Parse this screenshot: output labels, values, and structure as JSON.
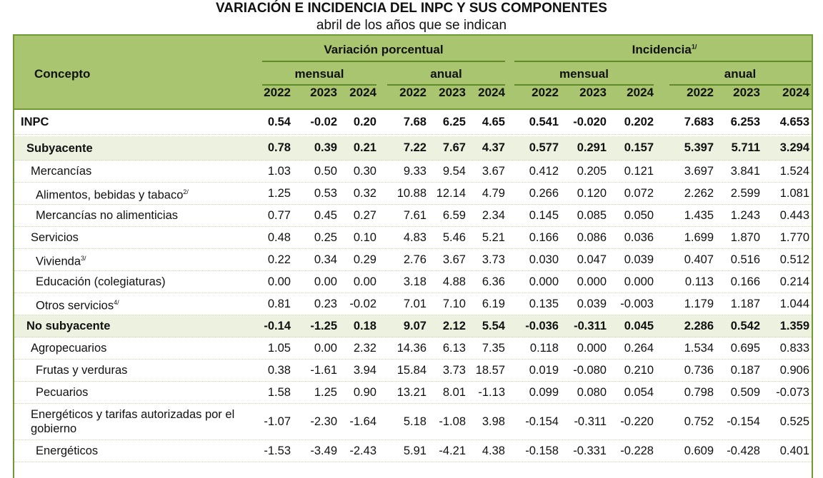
{
  "title": "VARIACIÓN E INCIDENCIA DEL INPC Y SUS COMPONENTES",
  "subtitle": "abril de los años que se indican",
  "header": {
    "concepto": "Concepto",
    "variacion": "Variación porcentual",
    "incidencia": "Incidencia",
    "incidencia_note": "1/",
    "mensual": "mensual",
    "anual": "anual",
    "years": [
      "2022",
      "2023",
      "2024",
      "2022",
      "2023",
      "2024",
      "2022",
      "2023",
      "2024",
      "2022",
      "2023",
      "2024"
    ]
  },
  "colors": {
    "header_bg": "#a9c56f",
    "border": "#6f9a34",
    "highlight_row": "#edf2e0"
  },
  "rows": [
    {
      "label": "INPC",
      "note": "",
      "level": 0,
      "bold": true,
      "highlight": false,
      "values": [
        "0.54",
        "-0.02",
        "0.20",
        "7.68",
        "6.25",
        "4.65",
        "0.541",
        "-0.020",
        "0.202",
        "7.683",
        "6.253",
        "4.653"
      ]
    },
    {
      "label": "Subyacente",
      "note": "",
      "level": 1,
      "bold": true,
      "highlight": true,
      "values": [
        "0.78",
        "0.39",
        "0.21",
        "7.22",
        "7.67",
        "4.37",
        "0.577",
        "0.291",
        "0.157",
        "5.397",
        "5.711",
        "3.294"
      ]
    },
    {
      "label": "Mercancías",
      "note": "",
      "level": 2,
      "bold": false,
      "highlight": false,
      "values": [
        "1.03",
        "0.50",
        "0.30",
        "9.33",
        "9.54",
        "3.67",
        "0.412",
        "0.205",
        "0.121",
        "3.697",
        "3.841",
        "1.524"
      ]
    },
    {
      "label": "Alimentos, bebidas y tabaco",
      "note": "2/",
      "level": 3,
      "bold": false,
      "highlight": false,
      "values": [
        "1.25",
        "0.53",
        "0.32",
        "10.88",
        "12.14",
        "4.79",
        "0.266",
        "0.120",
        "0.072",
        "2.262",
        "2.599",
        "1.081"
      ]
    },
    {
      "label": "Mercancías no alimenticias",
      "note": "",
      "level": 3,
      "bold": false,
      "highlight": false,
      "values": [
        "0.77",
        "0.45",
        "0.27",
        "7.61",
        "6.59",
        "2.34",
        "0.145",
        "0.085",
        "0.050",
        "1.435",
        "1.243",
        "0.443"
      ]
    },
    {
      "label": "Servicios",
      "note": "",
      "level": 2,
      "bold": false,
      "highlight": false,
      "values": [
        "0.48",
        "0.25",
        "0.10",
        "4.83",
        "5.46",
        "5.21",
        "0.166",
        "0.086",
        "0.036",
        "1.699",
        "1.870",
        "1.770"
      ]
    },
    {
      "label": "Vivienda",
      "note": "3/",
      "level": 3,
      "bold": false,
      "highlight": false,
      "values": [
        "0.22",
        "0.34",
        "0.29",
        "2.76",
        "3.67",
        "3.73",
        "0.030",
        "0.047",
        "0.039",
        "0.407",
        "0.516",
        "0.512"
      ]
    },
    {
      "label": "Educación (colegiaturas)",
      "note": "",
      "level": 3,
      "bold": false,
      "highlight": false,
      "values": [
        "0.00",
        "0.00",
        "0.00",
        "3.18",
        "4.88",
        "6.36",
        "0.000",
        "0.000",
        "0.000",
        "0.113",
        "0.166",
        "0.214"
      ]
    },
    {
      "label": "Otros servicios",
      "note": "4/",
      "level": 3,
      "bold": false,
      "highlight": false,
      "values": [
        "0.81",
        "0.23",
        "-0.02",
        "7.01",
        "7.10",
        "6.19",
        "0.135",
        "0.039",
        "-0.003",
        "1.179",
        "1.187",
        "1.044"
      ]
    },
    {
      "label": "No subyacente",
      "note": "",
      "level": 1,
      "bold": true,
      "highlight": true,
      "values": [
        "-0.14",
        "-1.25",
        "0.18",
        "9.07",
        "2.12",
        "5.54",
        "-0.036",
        "-0.311",
        "0.045",
        "2.286",
        "0.542",
        "1.359"
      ]
    },
    {
      "label": "Agropecuarios",
      "note": "",
      "level": 2,
      "bold": false,
      "highlight": false,
      "values": [
        "1.05",
        "0.00",
        "2.32",
        "14.36",
        "6.13",
        "7.35",
        "0.118",
        "0.000",
        "0.264",
        "1.534",
        "0.695",
        "0.833"
      ]
    },
    {
      "label": "Frutas y verduras",
      "note": "",
      "level": 3,
      "bold": false,
      "highlight": false,
      "values": [
        "0.38",
        "-1.61",
        "3.94",
        "15.84",
        "3.73",
        "18.57",
        "0.019",
        "-0.080",
        "0.210",
        "0.736",
        "0.187",
        "0.906"
      ]
    },
    {
      "label": "Pecuarios",
      "note": "",
      "level": 3,
      "bold": false,
      "highlight": false,
      "values": [
        "1.58",
        "1.25",
        "0.90",
        "13.21",
        "8.01",
        "-1.13",
        "0.099",
        "0.080",
        "0.054",
        "0.798",
        "0.509",
        "-0.073"
      ]
    },
    {
      "label": "Energéticos y tarifas autorizadas por el gobierno",
      "note": "",
      "level": 2,
      "bold": false,
      "highlight": false,
      "values": [
        "-1.07",
        "-2.30",
        "-1.64",
        "5.18",
        "-1.08",
        "3.98",
        "-0.154",
        "-0.311",
        "-0.220",
        "0.752",
        "-0.154",
        "0.525"
      ]
    },
    {
      "label": "Energéticos",
      "note": "",
      "level": 3,
      "bold": false,
      "highlight": false,
      "values": [
        "-1.53",
        "-3.49",
        "-2.43",
        "5.91",
        "-4.21",
        "4.38",
        "-0.158",
        "-0.331",
        "-0.228",
        "0.609",
        "-0.428",
        "0.401"
      ]
    }
  ]
}
